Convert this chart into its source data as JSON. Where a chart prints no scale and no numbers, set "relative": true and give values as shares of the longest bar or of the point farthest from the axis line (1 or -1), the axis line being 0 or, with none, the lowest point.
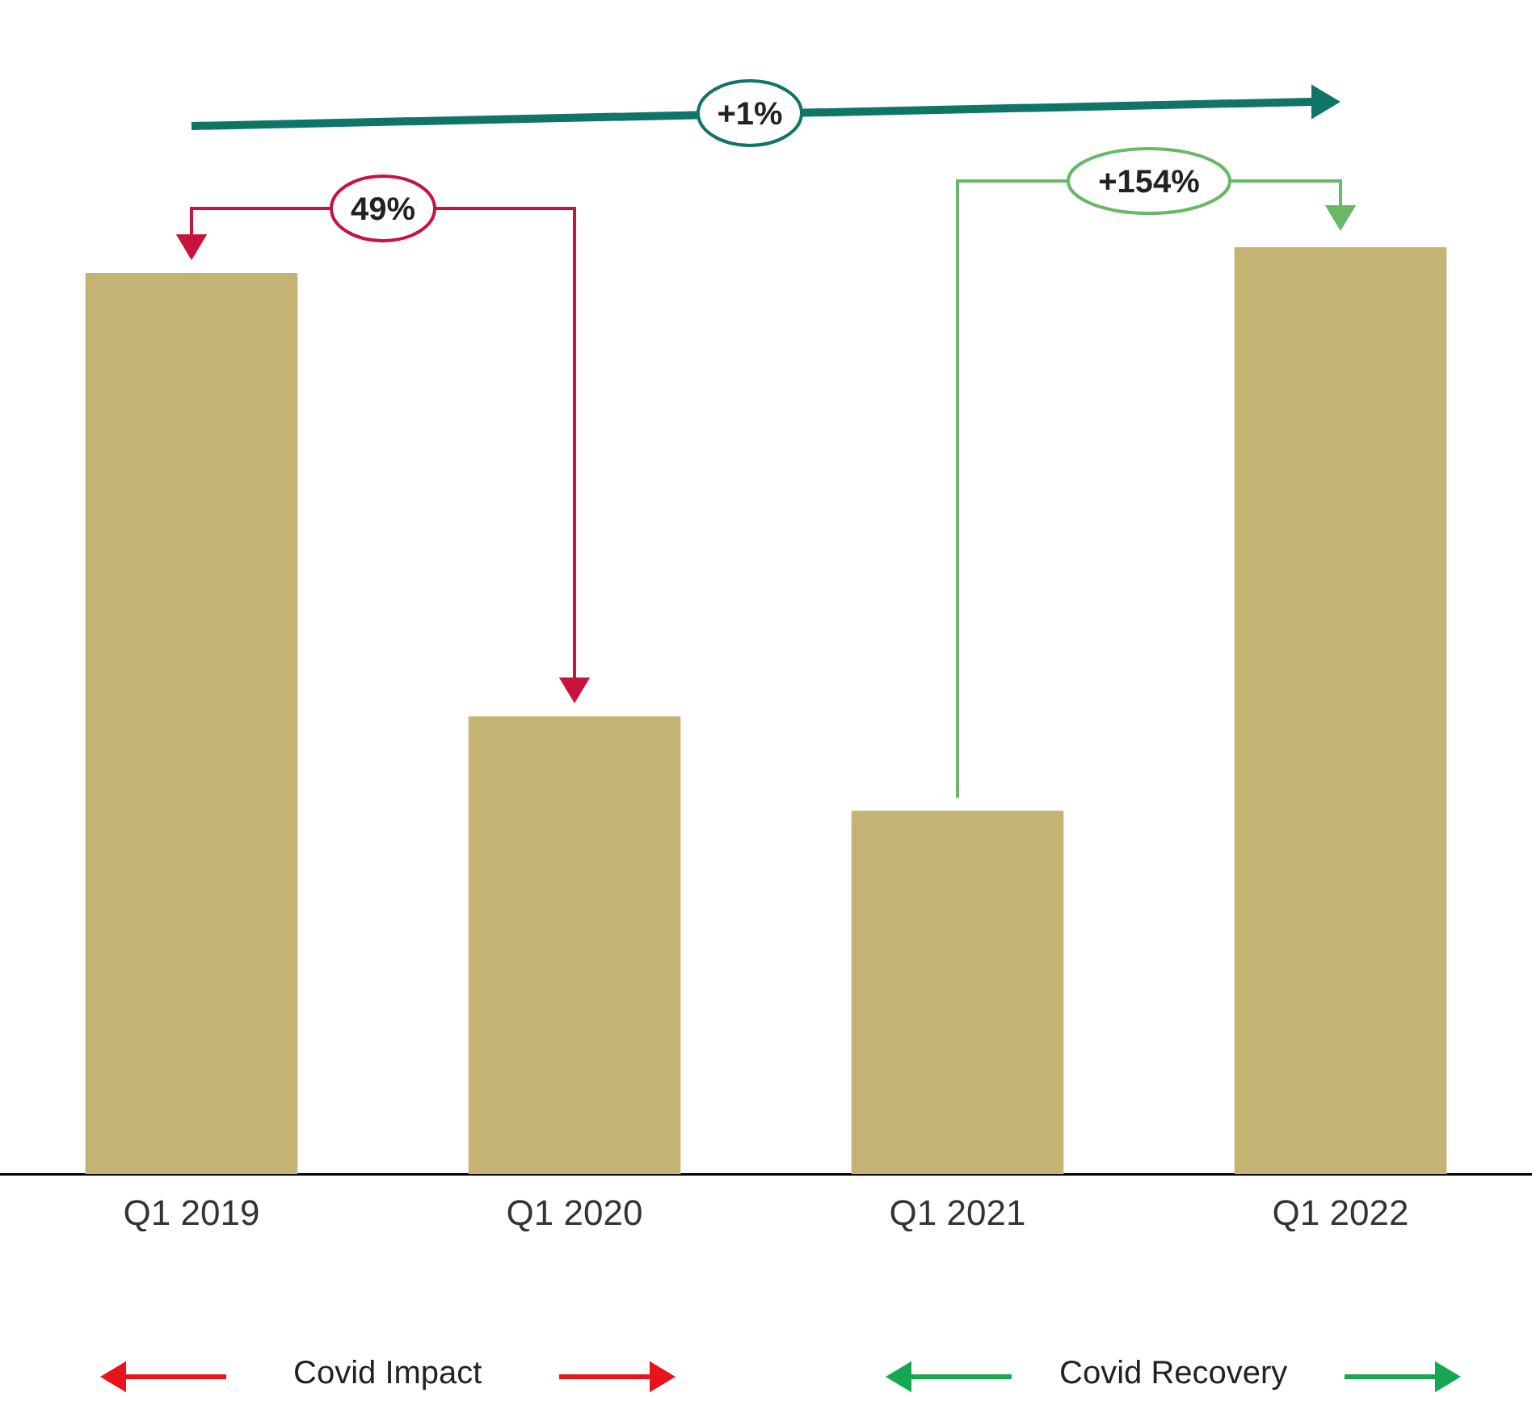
{
  "chart_data": {
    "type": "bar",
    "relative": true,
    "categories": [
      "Q1 2019",
      "Q1 2020",
      "Q1 2021",
      "Q1 2022"
    ],
    "values": [
      0.972,
      0.494,
      0.392,
      1
    ],
    "color": "#c5b374",
    "annotations": [
      "+1%",
      "49%",
      "+154%",
      "Covid Impact",
      "Covid Recovery"
    ],
    "grid": false,
    "legend": false
  }
}
